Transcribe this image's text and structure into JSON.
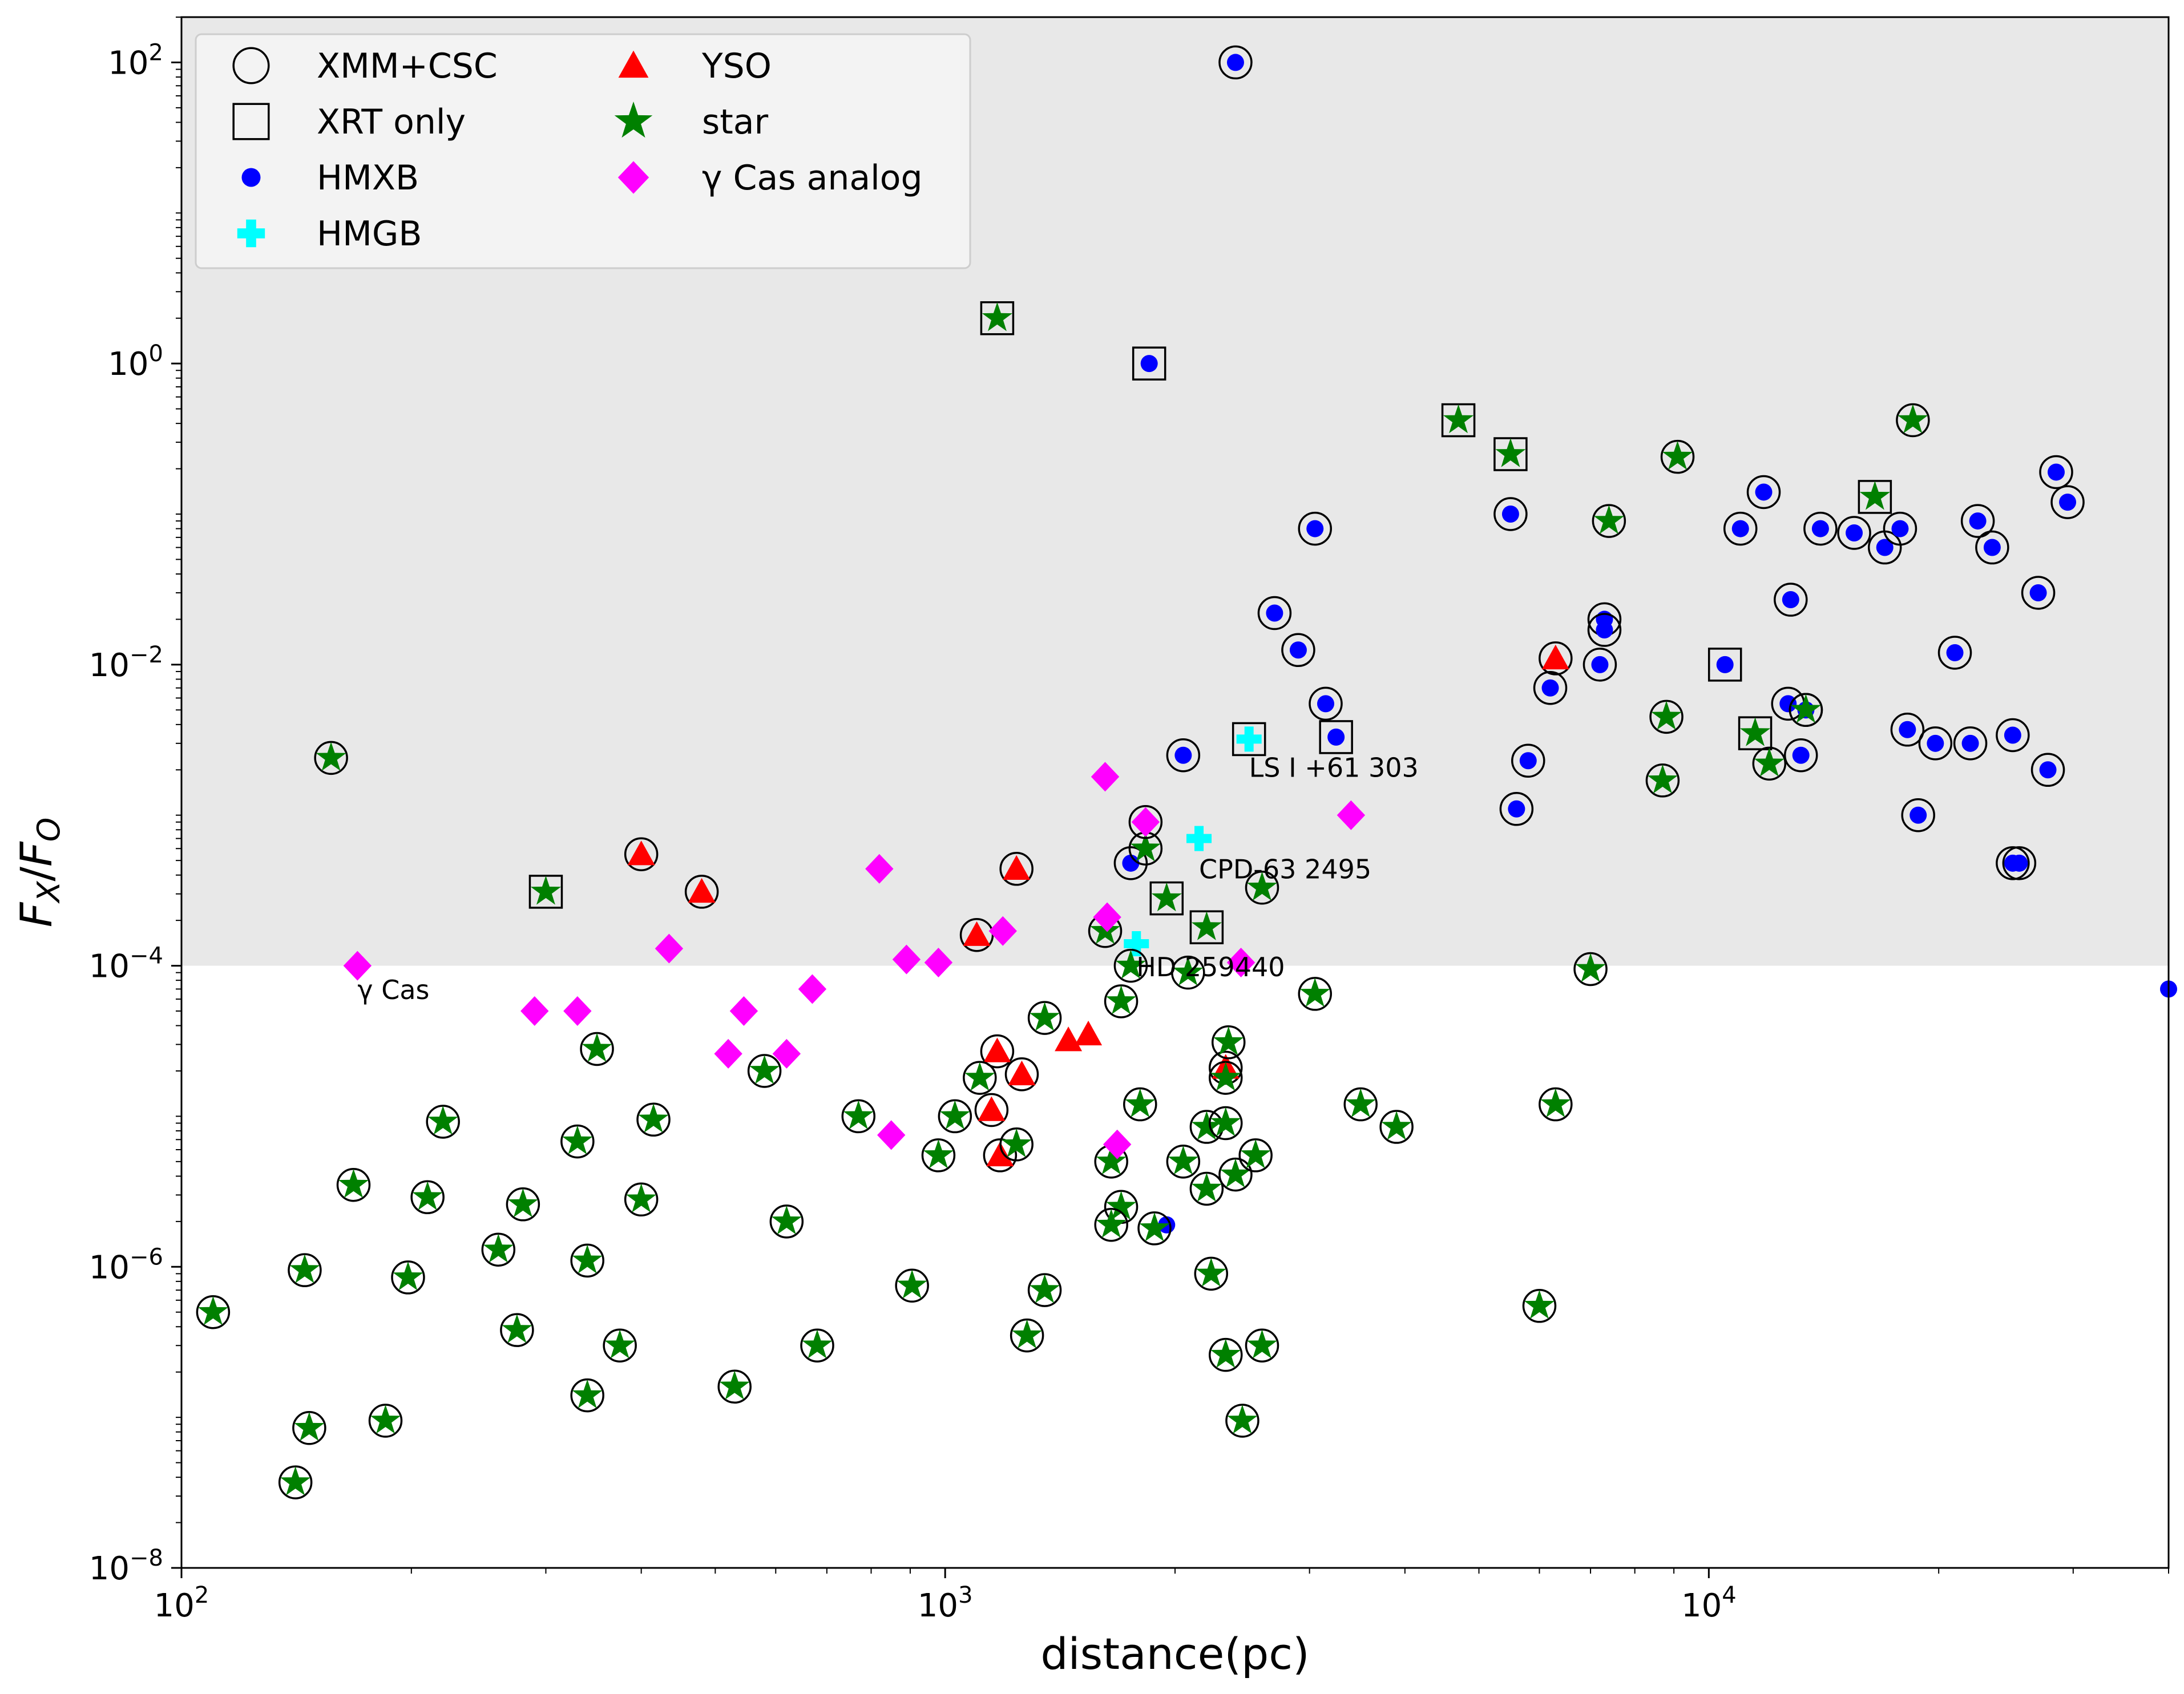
{
  "chart_data": {
    "type": "scatter",
    "title": "",
    "xlabel": "distance(pc)",
    "ylabel": "F_X/F_O",
    "x_scale": "log",
    "y_scale": "log",
    "xlim": [
      100,
      40000
    ],
    "ylim": [
      1e-08,
      200
    ],
    "x_ticks": [
      {
        "value": 100,
        "base": "10",
        "exp": "2"
      },
      {
        "value": 1000,
        "base": "10",
        "exp": "3"
      },
      {
        "value": 10000,
        "base": "10",
        "exp": "4"
      }
    ],
    "y_ticks": [
      {
        "value": 1e-08,
        "base": "10",
        "exp": "−8"
      },
      {
        "value": 1e-06,
        "base": "10",
        "exp": "−6"
      },
      {
        "value": 0.0001,
        "base": "10",
        "exp": "−4"
      },
      {
        "value": 0.01,
        "base": "10",
        "exp": "−2"
      },
      {
        "value": 1,
        "base": "10",
        "exp": "0"
      },
      {
        "value": 100,
        "base": "10",
        "exp": "2"
      }
    ],
    "shaded_region": {
      "y_min": 0.0001,
      "y_max": 200,
      "color": "#e8e8e8"
    },
    "grid": false,
    "legend_position": "upper-left",
    "legend": [
      {
        "label": "XMM+CSC",
        "marker": "circle-open"
      },
      {
        "label": "XRT only",
        "marker": "square-open"
      },
      {
        "label": "HMXB",
        "marker": "dot",
        "color": "#0000ff"
      },
      {
        "label": "HMGB",
        "marker": "plus",
        "color": "#00ffff"
      },
      {
        "label": "YSO",
        "marker": "triangle",
        "color": "#ff0000"
      },
      {
        "label": "star",
        "marker": "star",
        "color": "#008000"
      },
      {
        "label": "γ Cas analog",
        "marker": "diamond",
        "color": "#ff00ff"
      }
    ],
    "annotations": [
      {
        "text": "γ Cas",
        "x": 170,
        "y": 6e-05
      },
      {
        "text": "LS   I +61  303",
        "x": 2500,
        "y": 0.0018
      },
      {
        "text": "CPD-63  2495",
        "x": 2150,
        "y": 0.00038
      },
      {
        "text": "HD 259440",
        "x": 1780,
        "y": 8.5e-05
      }
    ],
    "colors": {
      "HMXB": "#0000ff",
      "HMGB": "#00ffff",
      "YSO": "#ff0000",
      "star": "#008000",
      "gamma_cas": "#ff00ff"
    },
    "series": [
      {
        "name": "HMXB",
        "marker": "dot",
        "points": [
          [
            2400,
            100,
            "c"
          ],
          [
            1850,
            1,
            "s"
          ],
          [
            3050,
            0.08,
            "c"
          ],
          [
            2700,
            0.022,
            "c"
          ],
          [
            2900,
            0.0125,
            "c"
          ],
          [
            3150,
            0.0055,
            "c"
          ],
          [
            3250,
            0.0033,
            "s"
          ],
          [
            2050,
            0.0025,
            "c"
          ],
          [
            1750,
            0.00048,
            "c"
          ],
          [
            1950,
            1.9e-06,
            "n"
          ],
          [
            5500,
            0.1,
            "c"
          ],
          [
            5600,
            0.0011,
            "c"
          ],
          [
            5800,
            0.0023,
            "c"
          ],
          [
            6200,
            0.007,
            "c"
          ],
          [
            7200,
            0.01,
            "c"
          ],
          [
            7300,
            0.02,
            "c"
          ],
          [
            7300,
            0.017,
            "c"
          ],
          [
            10500,
            0.01,
            "s"
          ],
          [
            11000,
            0.08,
            "c"
          ],
          [
            11800,
            0.14,
            "c"
          ],
          [
            12800,
            0.027,
            "c"
          ],
          [
            12700,
            0.0055,
            "c"
          ],
          [
            13200,
            0.0025,
            "c"
          ],
          [
            13400,
            0.005,
            "c"
          ],
          [
            14000,
            0.08,
            "c"
          ],
          [
            15500,
            0.075,
            "c"
          ],
          [
            17000,
            0.06,
            "c"
          ],
          [
            17800,
            0.08,
            "c"
          ],
          [
            18200,
            0.0037,
            "c"
          ],
          [
            18800,
            0.001,
            "c"
          ],
          [
            19800,
            0.003,
            "c"
          ],
          [
            21000,
            0.012,
            "c"
          ],
          [
            22000,
            0.003,
            "c"
          ],
          [
            22500,
            0.09,
            "c"
          ],
          [
            23500,
            0.06,
            "c"
          ],
          [
            25000,
            0.0034,
            "c"
          ],
          [
            25000,
            0.00048,
            "c"
          ],
          [
            25500,
            0.00048,
            "c"
          ],
          [
            27000,
            0.03,
            "c"
          ],
          [
            27800,
            0.002,
            "c"
          ],
          [
            28500,
            0.19,
            "c"
          ],
          [
            29500,
            0.12,
            "c"
          ],
          [
            40000,
            7e-05,
            "n"
          ]
        ]
      },
      {
        "name": "HMGB",
        "marker": "plus",
        "points": [
          [
            2500,
            0.0032,
            "s"
          ],
          [
            2150,
            0.0007,
            "n"
          ],
          [
            1780,
            0.00014,
            "n"
          ]
        ]
      },
      {
        "name": "YSO",
        "marker": "triangle",
        "points": [
          [
            400,
            0.00055,
            "c"
          ],
          [
            480,
            0.00031,
            "c"
          ],
          [
            1100,
            0.00016,
            "c"
          ],
          [
            1240,
            0.00044,
            "c"
          ],
          [
            1170,
            2.7e-05,
            "c"
          ],
          [
            1260,
            1.9e-05,
            "c"
          ],
          [
            1150,
            1.1e-05,
            "c"
          ],
          [
            1180,
            5.5e-06,
            "c"
          ],
          [
            1450,
            3.2e-05,
            "n"
          ],
          [
            1540,
            3.5e-05,
            "n"
          ],
          [
            2330,
            2.1e-05,
            "c"
          ],
          [
            6300,
            0.011,
            "c"
          ]
        ]
      },
      {
        "name": "star",
        "marker": "star",
        "points": [
          [
            157,
            0.0024,
            "c"
          ],
          [
            300,
            0.00031,
            "s"
          ],
          [
            1170,
            2,
            "s"
          ],
          [
            4700,
            0.42,
            "s"
          ],
          [
            5500,
            0.25,
            "s"
          ],
          [
            7400,
            0.09,
            "c"
          ],
          [
            9100,
            0.24,
            "c"
          ],
          [
            8800,
            0.0045,
            "c"
          ],
          [
            8700,
            0.0017,
            "c"
          ],
          [
            11500,
            0.0035,
            "s"
          ],
          [
            12000,
            0.0022,
            "c"
          ],
          [
            13400,
            0.005,
            "c"
          ],
          [
            16500,
            0.13,
            "s"
          ],
          [
            18500,
            0.42,
            "c"
          ],
          [
            7000,
            9.5e-05,
            "c"
          ],
          [
            6300,
            1.2e-05,
            "c"
          ],
          [
            6000,
            5.5e-07,
            "c"
          ],
          [
            3050,
            6.5e-05,
            "c"
          ],
          [
            3500,
            1.2e-05,
            "c"
          ],
          [
            3900,
            8.5e-06,
            "c"
          ],
          [
            1950,
            0.00028,
            "s"
          ],
          [
            2200,
            0.00018,
            "s"
          ],
          [
            2600,
            0.00033,
            "c"
          ],
          [
            1830,
            0.0006,
            "c"
          ],
          [
            1750,
            0.0001,
            "c"
          ],
          [
            2080,
            9e-05,
            "c"
          ],
          [
            1620,
            0.00017,
            "c"
          ],
          [
            1700,
            5.8e-05,
            "c"
          ],
          [
            1800,
            1.2e-05,
            "c"
          ],
          [
            1650,
            5e-06,
            "c"
          ],
          [
            1700,
            2.5e-06,
            "c"
          ],
          [
            1650,
            1.9e-06,
            "c"
          ],
          [
            1880,
            1.8e-06,
            "c"
          ],
          [
            2050,
            5e-06,
            "c"
          ],
          [
            2200,
            8.5e-06,
            "c"
          ],
          [
            2330,
            9e-06,
            "c"
          ],
          [
            2200,
            3.3e-06,
            "c"
          ],
          [
            2400,
            4.1e-06,
            "c"
          ],
          [
            2550,
            5.5e-06,
            "c"
          ],
          [
            2350,
            3.1e-05,
            "c"
          ],
          [
            2330,
            1.8e-05,
            "c"
          ],
          [
            2230,
            9e-07,
            "c"
          ],
          [
            2330,
            2.6e-07,
            "c"
          ],
          [
            2600,
            3e-07,
            "c"
          ],
          [
            2450,
            9.5e-08,
            "c"
          ],
          [
            1350,
            4.5e-05,
            "c"
          ],
          [
            1350,
            7e-07,
            "c"
          ],
          [
            1280,
            3.5e-07,
            "c"
          ],
          [
            1110,
            1.8e-05,
            "c"
          ],
          [
            1030,
            1e-05,
            "c"
          ],
          [
            1240,
            6.5e-06,
            "c"
          ],
          [
            980,
            5.5e-06,
            "c"
          ],
          [
            905,
            7.5e-07,
            "c"
          ],
          [
            770,
            1e-05,
            "c"
          ],
          [
            680,
            3e-07,
            "c"
          ],
          [
            620,
            2e-06,
            "c"
          ],
          [
            580,
            2e-05,
            "c"
          ],
          [
            530,
            1.6e-07,
            "c"
          ],
          [
            415,
            9.5e-06,
            "c"
          ],
          [
            400,
            2.8e-06,
            "c"
          ],
          [
            375,
            3e-07,
            "c"
          ],
          [
            350,
            2.8e-05,
            "c"
          ],
          [
            340,
            1.1e-06,
            "c"
          ],
          [
            340,
            1.4e-07,
            "c"
          ],
          [
            330,
            6.8e-06,
            "c"
          ],
          [
            280,
            2.6e-06,
            "c"
          ],
          [
            275,
            3.8e-07,
            "c"
          ],
          [
            260,
            1.3e-06,
            "c"
          ],
          [
            220,
            9.2e-06,
            "c"
          ],
          [
            210,
            2.9e-06,
            "c"
          ],
          [
            198,
            8.5e-07,
            "c"
          ],
          [
            185,
            9.5e-08,
            "c"
          ],
          [
            168,
            3.5e-06,
            "c"
          ],
          [
            145,
            9.5e-07,
            "c"
          ],
          [
            147,
            8.5e-08,
            "c"
          ],
          [
            141,
            3.7e-08,
            "c"
          ],
          [
            110,
            5e-07,
            "c"
          ]
        ]
      },
      {
        "name": "γ Cas analog",
        "marker": "diamond",
        "points": [
          [
            170,
            0.0001,
            "n"
          ],
          [
            290,
            5e-05,
            "n"
          ],
          [
            330,
            5e-05,
            "n"
          ],
          [
            435,
            0.00013,
            "n"
          ],
          [
            520,
            2.6e-05,
            "n"
          ],
          [
            545,
            5e-05,
            "n"
          ],
          [
            620,
            2.6e-05,
            "n"
          ],
          [
            670,
            7e-05,
            "n"
          ],
          [
            820,
            0.00044,
            "n"
          ],
          [
            850,
            7.5e-06,
            "n"
          ],
          [
            890,
            0.00011,
            "n"
          ],
          [
            980,
            0.000105,
            "n"
          ],
          [
            1190,
            0.00017,
            "n"
          ],
          [
            1620,
            0.0018,
            "n"
          ],
          [
            1630,
            0.00021,
            "n"
          ],
          [
            1830,
            0.0009,
            "c"
          ],
          [
            1680,
            6.5e-06,
            "n"
          ],
          [
            2440,
            0.000105,
            "n"
          ],
          [
            3400,
            0.001,
            "n"
          ]
        ]
      }
    ]
  }
}
